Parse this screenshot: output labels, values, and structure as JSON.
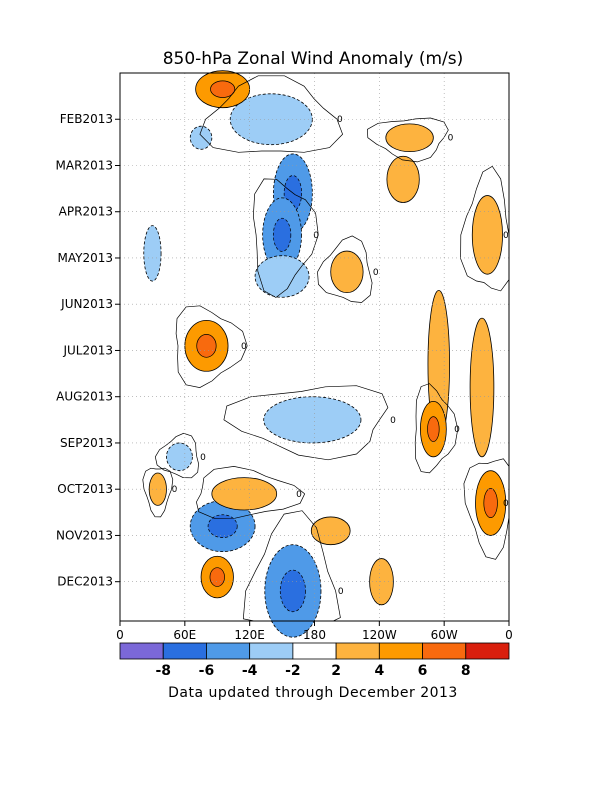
{
  "chart_data": {
    "type": "heatmap",
    "title": "850-hPa Zonal Wind Anomaly (m/s)",
    "xlabel": "",
    "ylabel": "",
    "x_ticks": [
      "0",
      "60E",
      "120E",
      "180",
      "120W",
      "60W",
      "0"
    ],
    "x_range": [
      0,
      360
    ],
    "y_ticks": [
      "FEB2013",
      "MAR2013",
      "APR2013",
      "MAY2013",
      "JUN2013",
      "JUL2013",
      "AUG2013",
      "SEP2013",
      "OCT2013",
      "NOV2013",
      "DEC2013"
    ],
    "y_range": [
      "JAN2013",
      "DEC2013"
    ],
    "grid": true,
    "contour_zero_label": "0",
    "colorbar": {
      "levels": [
        "-8",
        "-6",
        "-4",
        "-2",
        "2",
        "4",
        "6",
        "8"
      ],
      "colors": [
        "#7b68d8",
        "#2a6fe0",
        "#4f9ae8",
        "#9dcdf6",
        "#ffffff",
        "#fdb33f",
        "#fd9a00",
        "#f86a0e",
        "#d91f0d"
      ]
    },
    "anomaly_regions": [
      {
        "lon": 140,
        "month": 1.0,
        "value": -3,
        "rx": 38,
        "ry": 0.55
      },
      {
        "lon": 160,
        "month": 2.6,
        "value": -4,
        "rx": 18,
        "ry": 0.85
      },
      {
        "lon": 150,
        "month": 3.5,
        "value": -5,
        "rx": 18,
        "ry": 0.8
      },
      {
        "lon": 150,
        "month": 4.4,
        "value": -3,
        "rx": 25,
        "ry": 0.45
      },
      {
        "lon": 178,
        "month": 7.5,
        "value": -3,
        "rx": 45,
        "ry": 0.5
      },
      {
        "lon": 95,
        "month": 9.8,
        "value": -5,
        "rx": 30,
        "ry": 0.55
      },
      {
        "lon": 160,
        "month": 11.2,
        "value": -5,
        "rx": 26,
        "ry": 1.0
      },
      {
        "lon": 30,
        "month": 3.9,
        "value": -3,
        "rx": 8,
        "ry": 0.6
      },
      {
        "lon": 80,
        "month": 5.9,
        "value": 4,
        "rx": 20,
        "ry": 0.55
      },
      {
        "lon": 95,
        "month": 0.35,
        "value": 4,
        "rx": 25,
        "ry": 0.4
      },
      {
        "lon": 268,
        "month": 1.4,
        "value": 3,
        "rx": 22,
        "ry": 0.3
      },
      {
        "lon": 262,
        "month": 2.3,
        "value": 3,
        "rx": 15,
        "ry": 0.5
      },
      {
        "lon": 340,
        "month": 3.5,
        "value": 3,
        "rx": 14,
        "ry": 0.85
      },
      {
        "lon": 295,
        "month": 6.3,
        "value": 3,
        "rx": 10,
        "ry": 1.6
      },
      {
        "lon": 290,
        "month": 7.7,
        "value": 5,
        "rx": 12,
        "ry": 0.6
      },
      {
        "lon": 335,
        "month": 6.8,
        "value": 3,
        "rx": 11,
        "ry": 1.5
      },
      {
        "lon": 343,
        "month": 9.3,
        "value": 4,
        "rx": 14,
        "ry": 0.7
      },
      {
        "lon": 90,
        "month": 10.9,
        "value": 4,
        "rx": 15,
        "ry": 0.45
      },
      {
        "lon": 210,
        "month": 4.3,
        "value": 3,
        "rx": 15,
        "ry": 0.45
      },
      {
        "lon": 242,
        "month": 11.0,
        "value": 3,
        "rx": 11,
        "ry": 0.5
      },
      {
        "lon": 115,
        "month": 9.1,
        "value": 3,
        "rx": 30,
        "ry": 0.35
      },
      {
        "lon": 75,
        "month": 1.4,
        "value": -3,
        "rx": 10,
        "ry": 0.25
      },
      {
        "lon": 35,
        "month": 9.0,
        "value": 3,
        "rx": 8,
        "ry": 0.35
      },
      {
        "lon": 195,
        "month": 9.9,
        "value": 3,
        "rx": 18,
        "ry": 0.3
      },
      {
        "lon": 55,
        "month": 8.3,
        "value": -3,
        "rx": 12,
        "ry": 0.3
      }
    ]
  },
  "footer": "Data updated through December 2013"
}
